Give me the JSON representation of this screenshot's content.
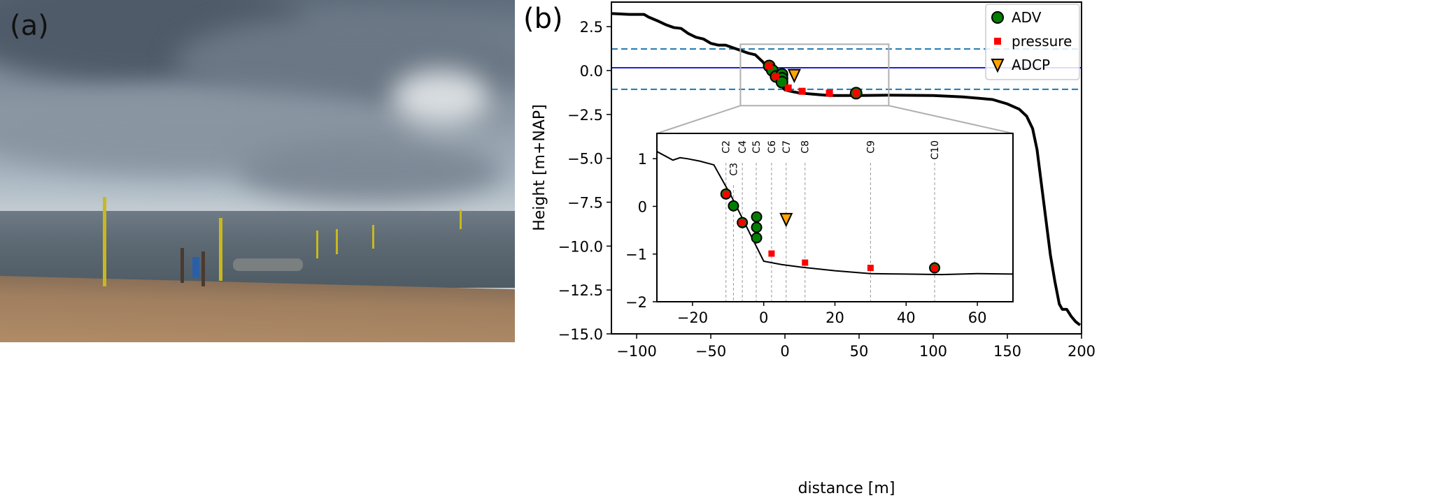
{
  "panel_a": {
    "label": "(a)"
  },
  "panel_b": {
    "label": "(b)"
  },
  "chart_data": [
    {
      "type": "line",
      "name": "main-profile",
      "xlabel": "distance [m]",
      "ylabel": "Height [m+NAP]",
      "xlim": [
        -117,
        200
      ],
      "ylim": [
        -15,
        3.9
      ],
      "xticks": [
        -100,
        -50,
        0,
        50,
        100,
        150,
        200
      ],
      "xtick_labels": [
        "−100",
        "−50",
        "0",
        "50",
        "100",
        "150",
        "200"
      ],
      "yticks": [
        2.5,
        0,
        -2.5,
        -5,
        -7.5,
        -10,
        -12.5,
        -15
      ],
      "ytick_labels": [
        "2.5",
        "0.0",
        "−2.5",
        "−5.0",
        "−7.5",
        "−10.0",
        "−12.5",
        "−15.0"
      ],
      "grid": false,
      "profile": {
        "x": [
          -117,
          -105,
          -95,
          -92,
          -85,
          -80,
          -75,
          -70,
          -65,
          -60,
          -55,
          -50,
          -45,
          -40,
          -35,
          -30,
          -25,
          -20,
          -15,
          -10,
          -5,
          0,
          5,
          10,
          20,
          30,
          50,
          70,
          100,
          120,
          140,
          150,
          158,
          163,
          167,
          170,
          173,
          176,
          179,
          182,
          185,
          187,
          190,
          193,
          196,
          199
        ],
        "y": [
          3.25,
          3.2,
          3.2,
          3.05,
          2.8,
          2.6,
          2.45,
          2.4,
          2.1,
          1.9,
          1.8,
          1.55,
          1.45,
          1.45,
          1.3,
          1.15,
          1.0,
          0.9,
          0.5,
          0.0,
          -0.6,
          -1.1,
          -1.2,
          -1.28,
          -1.35,
          -1.42,
          -1.42,
          -1.4,
          -1.42,
          -1.5,
          -1.65,
          -1.9,
          -2.2,
          -2.6,
          -3.3,
          -4.5,
          -6.5,
          -8.5,
          -10.5,
          -12.0,
          -13.3,
          -13.6,
          -13.6,
          -14.0,
          -14.3,
          -14.5
        ]
      },
      "reference_lines": [
        {
          "y": 0.16,
          "style": "solid",
          "color": "#1f1fe0"
        },
        {
          "y": 1.23,
          "style": "dashed",
          "color": "#1f77b4"
        },
        {
          "y": -1.07,
          "style": "dashed",
          "color": "#1f77b4"
        }
      ],
      "zoom_box": {
        "x": [
          -30,
          70
        ],
        "y": [
          -2,
          1.5
        ]
      },
      "legend": {
        "placement": "top-right",
        "entries": [
          {
            "label": "ADV",
            "marker": "circle",
            "color": "#008000"
          },
          {
            "label": "pressure",
            "marker": "square",
            "color": "#ff0000"
          },
          {
            "label": "ADCP",
            "marker": "triangle-down",
            "color": "#ffa500"
          }
        ]
      }
    },
    {
      "type": "line",
      "name": "inset-profile",
      "xlim": [
        -30,
        70
      ],
      "ylim": [
        -2,
        1.53
      ],
      "xticks": [
        -20,
        0,
        20,
        40,
        60
      ],
      "xtick_labels": [
        "−20",
        "0",
        "20",
        "40",
        "60"
      ],
      "yticks": [
        1,
        0,
        -1,
        -2
      ],
      "ytick_labels": [
        "1",
        "0",
        "−1",
        "−2"
      ],
      "profile": {
        "x": [
          -30,
          -25.5,
          -23.5,
          -21.5,
          -18,
          -14,
          -9,
          -4,
          0,
          5,
          10,
          20,
          30,
          40,
          50,
          60,
          70
        ],
        "y": [
          1.15,
          0.97,
          1.02,
          1.0,
          0.95,
          0.87,
          0.2,
          -0.55,
          -1.15,
          -1.22,
          -1.27,
          -1.35,
          -1.41,
          -1.42,
          -1.43,
          -1.41,
          -1.42
        ]
      },
      "stations": [
        {
          "label": "C2",
          "x": -10.6
        },
        {
          "label": "C3",
          "x": -8.5
        },
        {
          "label": "C4",
          "x": -6.0
        },
        {
          "label": "C5",
          "x": -2.1
        },
        {
          "label": "C6",
          "x": 2.2
        },
        {
          "label": "C7",
          "x": 6.3
        },
        {
          "label": "C8",
          "x": 11.6
        },
        {
          "label": "C9",
          "x": 30.0
        },
        {
          "label": "C10",
          "x": 48.0
        }
      ],
      "adv": [
        {
          "x": -10.6,
          "y": 0.26
        },
        {
          "x": -8.5,
          "y": 0.01
        },
        {
          "x": -6.0,
          "y": -0.34
        },
        {
          "x": -2.0,
          "y": -0.22
        },
        {
          "x": -2.0,
          "y": -0.44
        },
        {
          "x": -2.0,
          "y": -0.66
        },
        {
          "x": 48.0,
          "y": -1.29
        }
      ],
      "pressure": [
        {
          "x": -10.6,
          "y": 0.26
        },
        {
          "x": -6.2,
          "y": -0.34
        },
        {
          "x": 2.2,
          "y": -0.99
        },
        {
          "x": 11.6,
          "y": -1.18
        },
        {
          "x": 30.0,
          "y": -1.29
        },
        {
          "x": 48.0,
          "y": -1.29
        }
      ],
      "adcp": [
        {
          "x": 6.3,
          "y": -0.27
        }
      ]
    }
  ]
}
